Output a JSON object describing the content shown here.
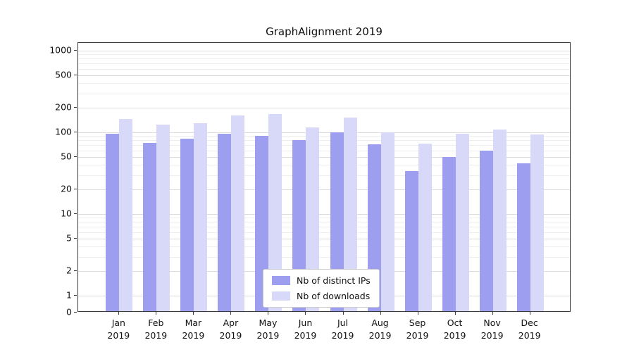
{
  "figure": {
    "title": "GraphAlignment 2019"
  },
  "chart_data": {
    "type": "bar",
    "title": "GraphAlignment 2019",
    "yscale": "symlog",
    "grid": true,
    "legend_position": "lower-center-inside",
    "ylim": [
      0,
      1400
    ],
    "yticks": [
      0,
      1,
      2,
      5,
      10,
      20,
      50,
      100,
      200,
      500,
      1000
    ],
    "categories": [
      "Jan 2019",
      "Feb 2019",
      "Mar 2019",
      "Apr 2019",
      "May 2019",
      "Jun 2019",
      "Jul 2019",
      "Aug 2019",
      "Sep 2019",
      "Oct 2019",
      "Nov 2019",
      "Dec 2019"
    ],
    "x_tick_line1": [
      "Jan",
      "Feb",
      "Mar",
      "Apr",
      "May",
      "Jun",
      "Jul",
      "Aug",
      "Sep",
      "Oct",
      "Nov",
      "Dec"
    ],
    "x_tick_line2": "2019",
    "series": [
      {
        "name": "Nb of distinct IPs",
        "color": "#9e9ef0",
        "values": [
          92,
          72,
          80,
          92,
          87,
          77,
          96,
          68,
          32,
          48,
          57,
          40
        ]
      },
      {
        "name": "Nb of downloads",
        "color": "#d8d8f8",
        "values": [
          140,
          120,
          125,
          155,
          160,
          110,
          145,
          97,
          70,
          92,
          105,
          90
        ]
      }
    ]
  }
}
